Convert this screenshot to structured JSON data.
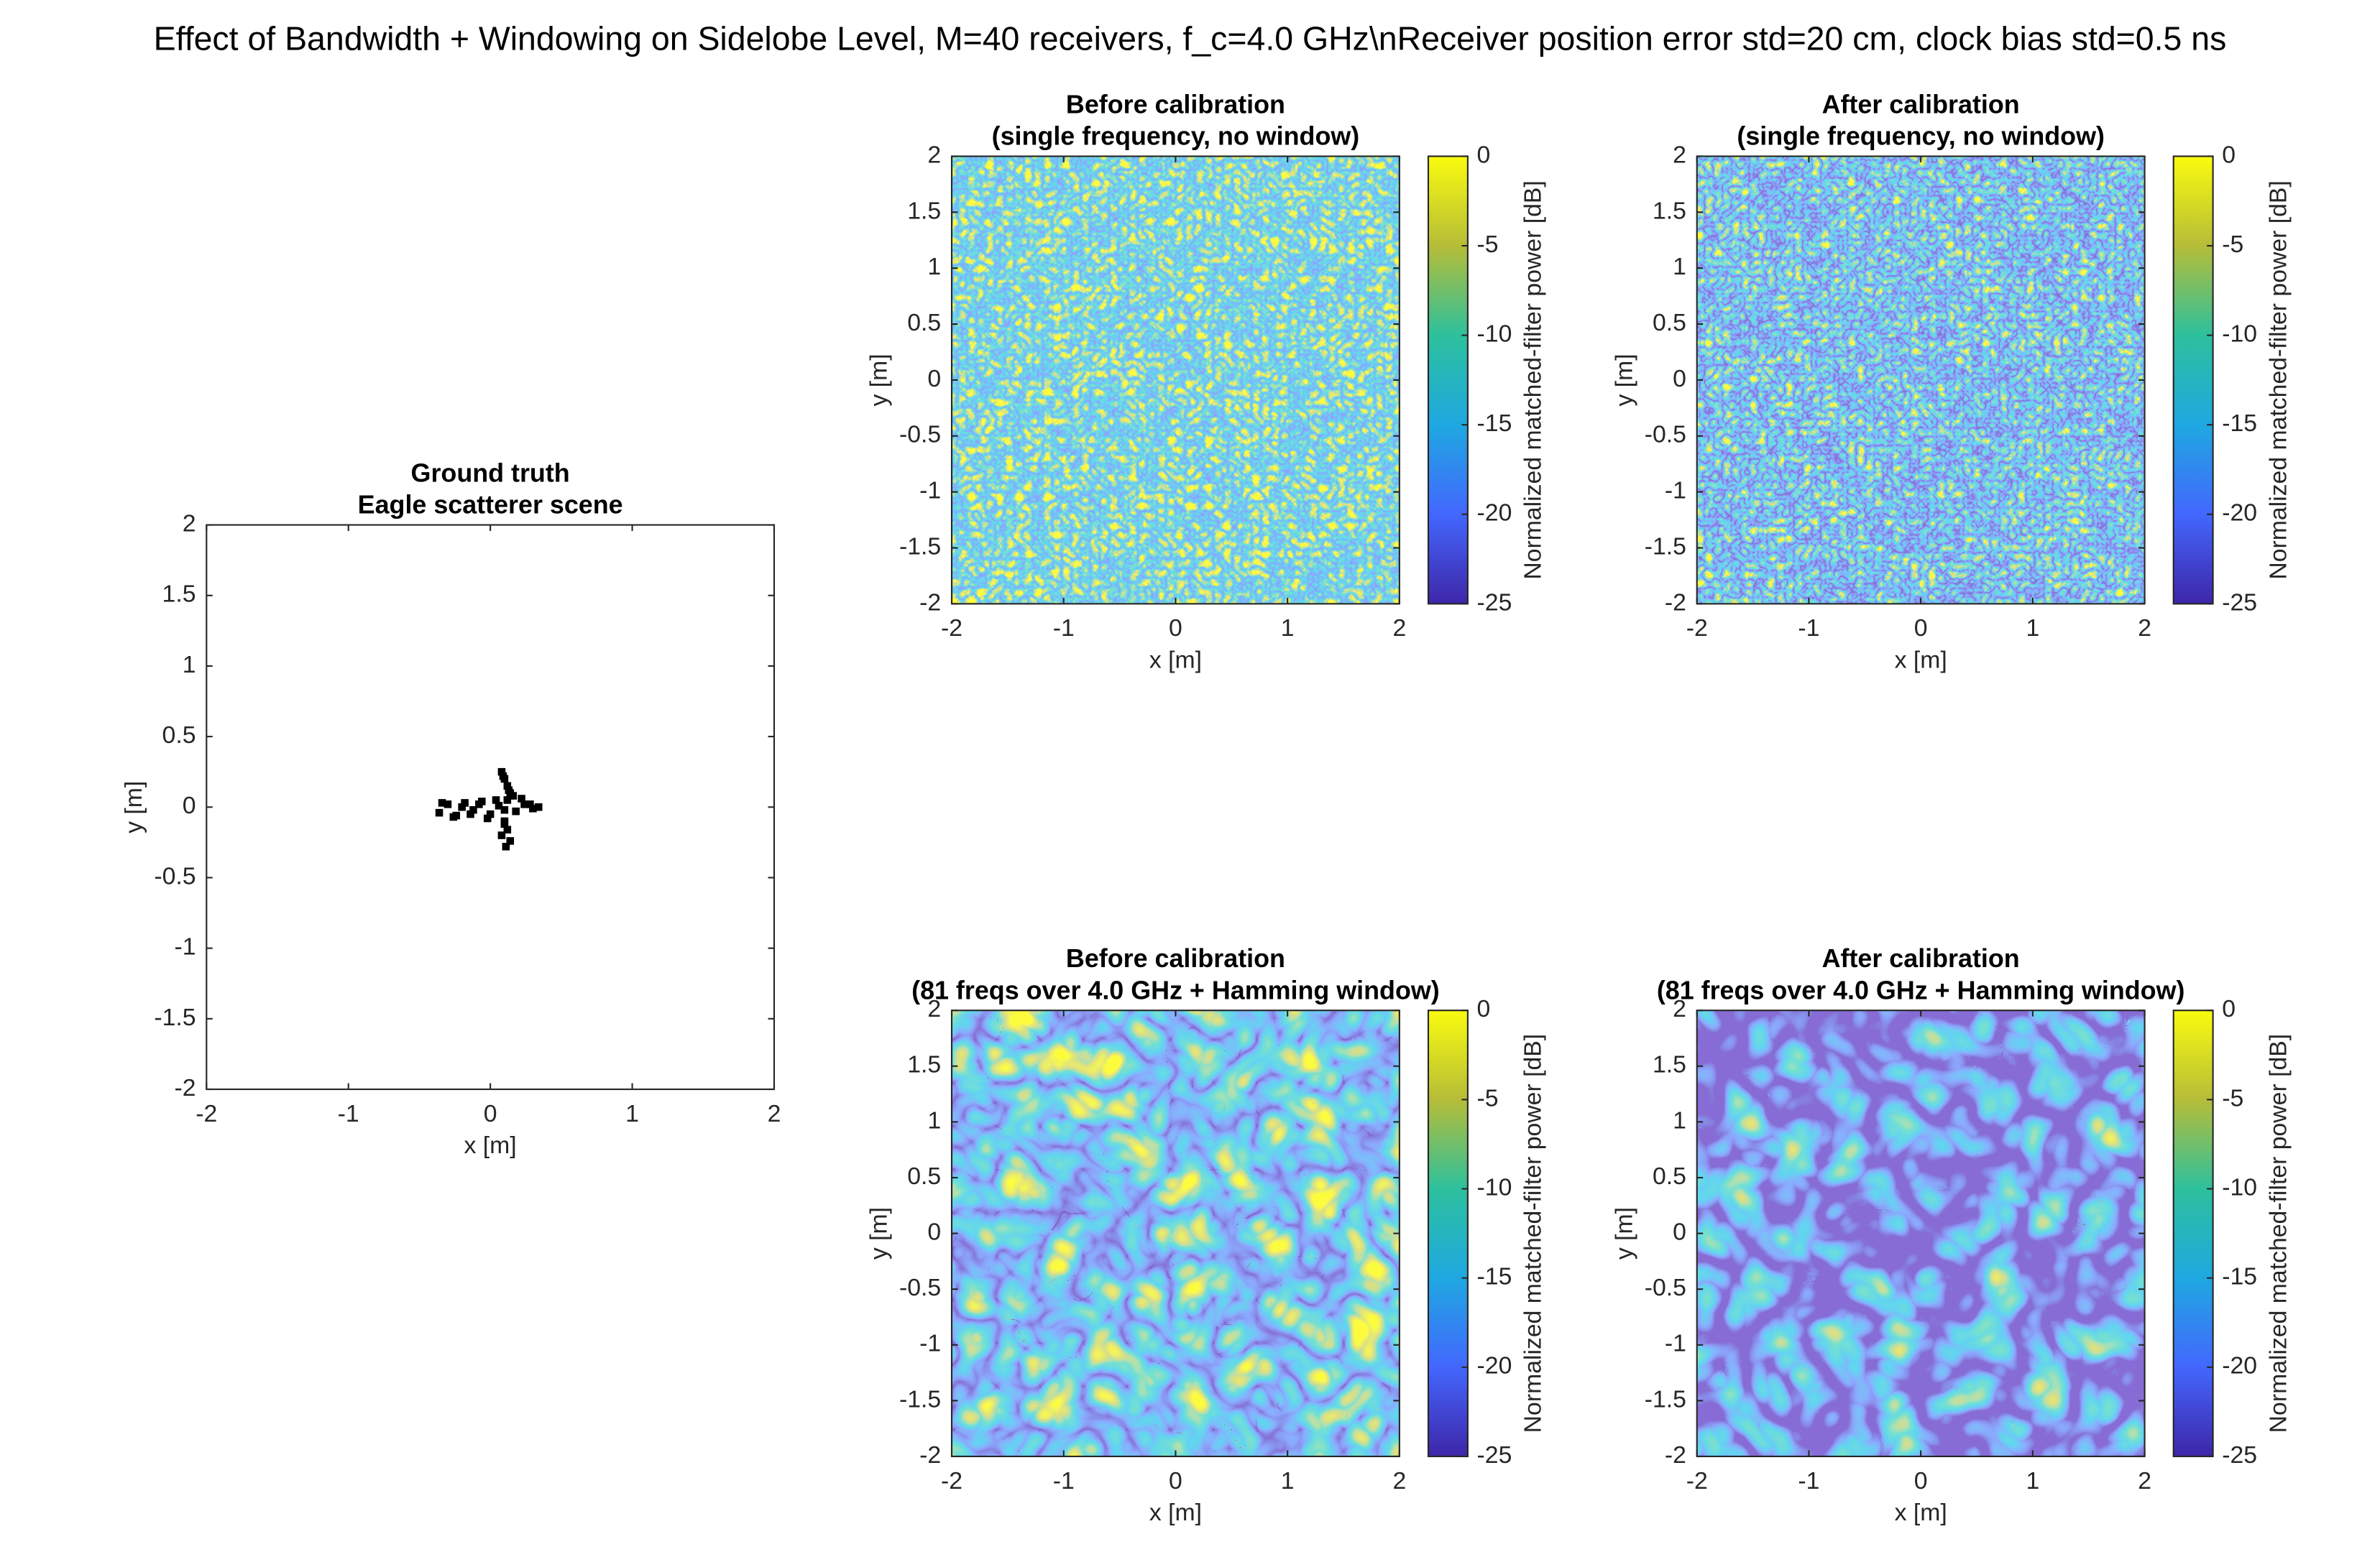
{
  "figure_title": "Effect of Bandwidth + Windowing on Sidelobe Level, M=40 receivers, f_c=4.0 GHz\\nReceiver position error std=20 cm, clock bias std=0.5 ns",
  "chart_data": [
    {
      "type": "scatter",
      "title": "Ground truth",
      "subtitle": "Eagle scatterer scene",
      "xlabel": "x [m]",
      "ylabel": "y [m]",
      "color": "#000000",
      "x": [
        -0.36,
        -0.3,
        -0.24,
        -0.18,
        -0.12,
        -0.06,
        0,
        0.06,
        0.12,
        0.18,
        0.24,
        0.3,
        0.34,
        -0.34,
        -0.26,
        -0.2,
        -0.14,
        -0.08,
        -0.02,
        0.04,
        0.1,
        0.16,
        0.22,
        0.28,
        0.08,
        0.1,
        0.12,
        0.14,
        0.1,
        0.12,
        0.08,
        0.14,
        0.11,
        0.09,
        0.13,
        0.1
      ],
      "y": [
        -0.04,
        0.02,
        -0.06,
        0.03,
        -0.02,
        0.04,
        -0.05,
        0.01,
        0.05,
        -0.03,
        0.02,
        -0.01,
        0,
        0.03,
        -0.07,
        0,
        -0.05,
        0.02,
        -0.08,
        0.05,
        -0.02,
        0.08,
        0.06,
        0.02,
        0.25,
        0.2,
        0.15,
        0.1,
        -0.12,
        -0.16,
        -0.2,
        -0.24,
        -0.28,
        0.22,
        0.12,
        -0.1
      ],
      "xlim": [
        -2,
        2
      ],
      "ylim": [
        -2,
        2
      ],
      "xticks": [
        -2,
        -1,
        0,
        1,
        2
      ],
      "yticks": [
        -2,
        -1.5,
        -1,
        -0.5,
        0,
        0.5,
        1,
        1.5,
        2
      ]
    },
    {
      "type": "heatmap",
      "title": "Before calibration",
      "subtitle": "(single frequency, no window)",
      "xlabel": "x [m]",
      "ylabel": "y [m]",
      "xlim": [
        -2,
        2
      ],
      "ylim": [
        -2,
        2
      ],
      "xticks": [
        -2,
        -1,
        0,
        1,
        2
      ],
      "yticks": [
        -2,
        -1.5,
        -1,
        -0.5,
        0,
        0.5,
        1,
        1.5,
        2
      ],
      "clim": [
        -25,
        0
      ],
      "cticks": [
        -25,
        -20,
        -15,
        -10,
        -5,
        0
      ],
      "colorbar_label": "Normalized matched-filter power [dB]"
    },
    {
      "type": "heatmap",
      "title": "After calibration",
      "subtitle": "(single frequency, no window)",
      "xlabel": "x [m]",
      "ylabel": "y [m]",
      "xlim": [
        -2,
        2
      ],
      "ylim": [
        -2,
        2
      ],
      "xticks": [
        -2,
        -1,
        0,
        1,
        2
      ],
      "yticks": [
        -2,
        -1.5,
        -1,
        -0.5,
        0,
        0.5,
        1,
        1.5,
        2
      ],
      "clim": [
        -25,
        0
      ],
      "cticks": [
        -25,
        -20,
        -15,
        -10,
        -5,
        0
      ],
      "colorbar_label": "Normalized matched-filter power [dB]"
    },
    {
      "type": "heatmap",
      "title": "Before calibration",
      "subtitle": "(81 freqs over 4.0 GHz + Hamming window)",
      "xlabel": "x [m]",
      "ylabel": "y [m]",
      "xlim": [
        -2,
        2
      ],
      "ylim": [
        -2,
        2
      ],
      "xticks": [
        -2,
        -1,
        0,
        1,
        2
      ],
      "yticks": [
        -2,
        -1.5,
        -1,
        -0.5,
        0,
        0.5,
        1,
        1.5,
        2
      ],
      "clim": [
        -25,
        0
      ],
      "cticks": [
        -25,
        -20,
        -15,
        -10,
        -5,
        0
      ],
      "colorbar_label": "Normalized matched-filter power [dB]"
    },
    {
      "type": "heatmap",
      "title": "After calibration",
      "subtitle": "(81 freqs over 4.0 GHz + Hamming window)",
      "xlabel": "x [m]",
      "ylabel": "y [m]",
      "xlim": [
        -2,
        2
      ],
      "ylim": [
        -2,
        2
      ],
      "xticks": [
        -2,
        -1,
        0,
        1,
        2
      ],
      "yticks": [
        -2,
        -1.5,
        -1,
        -0.5,
        0,
        0.5,
        1,
        1.5,
        2
      ],
      "clim": [
        -25,
        0
      ],
      "cticks": [
        -25,
        -20,
        -15,
        -10,
        -5,
        0
      ],
      "colorbar_label": "Normalized matched-filter power [dB]"
    }
  ]
}
